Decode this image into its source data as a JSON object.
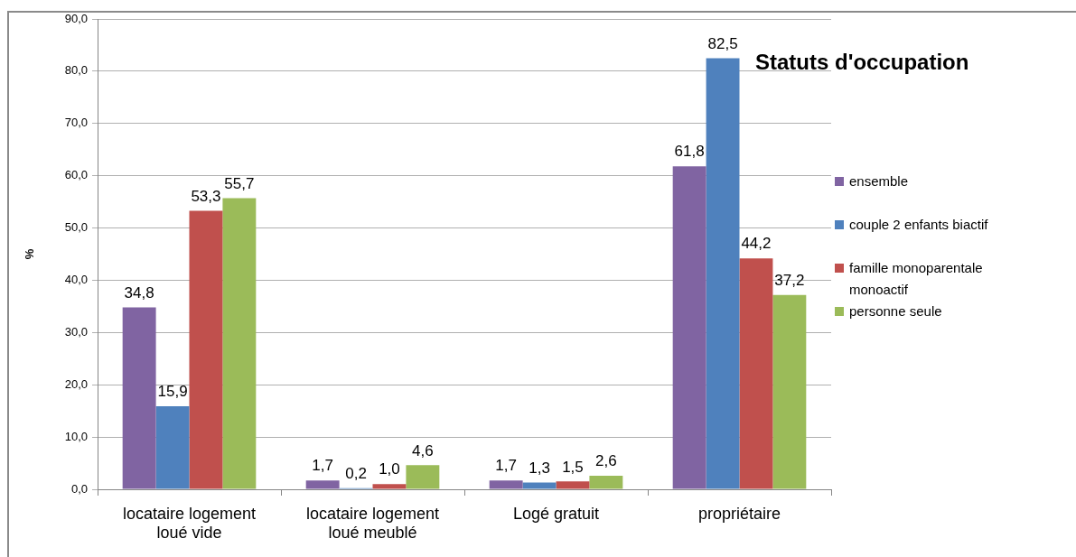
{
  "chart_data": {
    "type": "bar",
    "title": "Statuts d'occupation",
    "ylabel": "%",
    "categories": [
      "locataire logement loué vide",
      "locataire logement loué meublé",
      "Logé gratuit",
      "propriétaire"
    ],
    "series": [
      {
        "name": "ensemble",
        "color": "#8064a2",
        "values": [
          34.8,
          1.7,
          1.7,
          61.8
        ],
        "value_labels": [
          "34,8",
          "1,7",
          "1,7",
          "61,8"
        ]
      },
      {
        "name": "couple 2 enfants biactif",
        "color": "#4f81bd",
        "values": [
          15.9,
          0.2,
          1.3,
          82.5
        ],
        "value_labels": [
          "15,9",
          "0,2",
          "1,3",
          "82,5"
        ]
      },
      {
        "name": "famille monoparentale monoactif",
        "color": "#c0504d",
        "values": [
          53.3,
          1.0,
          1.5,
          44.2
        ],
        "value_labels": [
          "53,3",
          "1,0",
          "1,5",
          "44,2"
        ]
      },
      {
        "name": "personne seule",
        "color": "#9bbb59",
        "values": [
          55.7,
          4.6,
          2.6,
          37.2
        ],
        "value_labels": [
          "55,7",
          "4,6",
          "2,6",
          "37,2"
        ]
      }
    ],
    "ylim": [
      0,
      90
    ],
    "yticks": [
      {
        "value": 0,
        "label": "0,0"
      },
      {
        "value": 10,
        "label": "10,0"
      },
      {
        "value": 20,
        "label": "20,0"
      },
      {
        "value": 30,
        "label": "30,0"
      },
      {
        "value": 40,
        "label": "40,0"
      },
      {
        "value": 50,
        "label": "50,0"
      },
      {
        "value": 60,
        "label": "60,0"
      },
      {
        "value": 70,
        "label": "70,0"
      },
      {
        "value": 80,
        "label": "80,0"
      },
      {
        "value": 90,
        "label": "90,0"
      }
    ],
    "grid": "y",
    "legend": "right"
  }
}
